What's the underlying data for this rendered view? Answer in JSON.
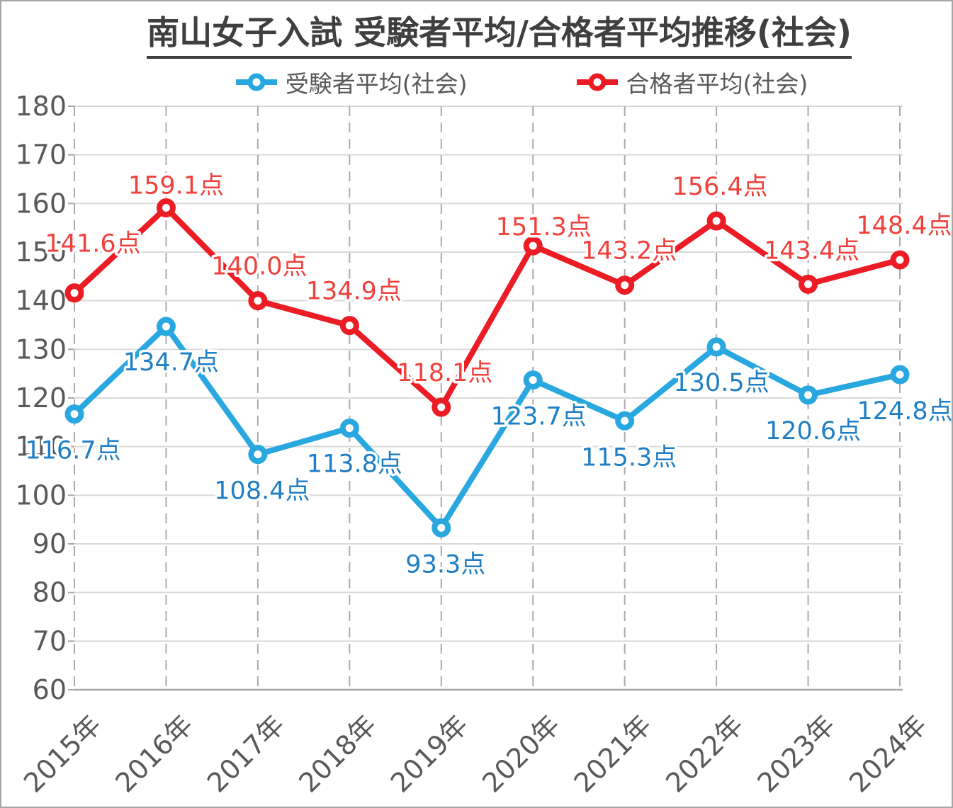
{
  "chart": {
    "title": "南山女子入試 受験者平均/合格者平均推移(社会)"
  },
  "chart_data": {
    "type": "line",
    "title": "南山女子入試 受験者平均/合格者平均推移(社会)",
    "categories": [
      "2015年",
      "2016年",
      "2017年",
      "2018年",
      "2019年",
      "2020年",
      "2021年",
      "2022年",
      "2023年",
      "2024年"
    ],
    "series": [
      {
        "name": "受験者平均(社会)",
        "color": "#29a8e0",
        "label_color": "#1f7ec4",
        "values": [
          116.7,
          134.7,
          108.4,
          113.8,
          93.3,
          123.7,
          115.3,
          130.5,
          120.6,
          124.8
        ],
        "labels": [
          "116.7点",
          "134.7点",
          "108.4点",
          "113.8点",
          "93.3点",
          "123.7点",
          "115.3点",
          "130.5点",
          "120.6点",
          "124.8点"
        ],
        "label_offsets": [
          {
            "dx": -2,
            "dy": 51
          },
          {
            "dx": 7,
            "dy": 50
          },
          {
            "dx": 6,
            "dy": 51
          },
          {
            "dx": 7,
            "dy": 50
          },
          {
            "dx": 6,
            "dy": 51
          },
          {
            "dx": 8,
            "dy": 51
          },
          {
            "dx": 6,
            "dy": 51
          },
          {
            "dx": 7,
            "dy": 50
          },
          {
            "dx": 7,
            "dy": 50
          },
          {
            "dx": 7,
            "dy": 51
          }
        ]
      },
      {
        "name": "合格者平均(社会)",
        "color": "#ec1c24",
        "label_color": "#f0413c",
        "values": [
          141.6,
          159.1,
          140.0,
          134.9,
          118.1,
          151.3,
          143.2,
          156.4,
          143.4,
          148.4
        ],
        "labels": [
          "141.6点",
          "159.1点",
          "140.0点",
          "134.9点",
          "118.1点",
          "151.3点",
          "143.2点",
          "156.4点",
          "143.4点",
          "148.4点"
        ],
        "label_offsets": [
          {
            "dx": 26,
            "dy": -70
          },
          {
            "dx": 14,
            "dy": -32
          },
          {
            "dx": 2,
            "dy": -49
          },
          {
            "dx": 6,
            "dy": -49
          },
          {
            "dx": 5,
            "dy": -49
          },
          {
            "dx": 15,
            "dy": -27
          },
          {
            "dx": 6,
            "dy": -49
          },
          {
            "dx": 5,
            "dy": -49
          },
          {
            "dx": 5,
            "dy": -48
          },
          {
            "dx": 6,
            "dy": -49
          }
        ]
      }
    ],
    "yticks": [
      60,
      70,
      80,
      90,
      100,
      110,
      120,
      130,
      140,
      150,
      160,
      170,
      180
    ],
    "ylim": [
      60,
      180
    ],
    "ytick_step": 10,
    "data_label_suffix": "点",
    "legend_position": "top",
    "grid": {
      "horizontal": "solid",
      "vertical": "dashed"
    },
    "style": {
      "h_grid_color": "#d9d9d9",
      "v_grid_color": "#ababab",
      "axis_color": "#a6a6a6",
      "tick_label_color": "#595959",
      "title_color": "#3f3f3f",
      "legend_text_color": "#595959"
    }
  }
}
